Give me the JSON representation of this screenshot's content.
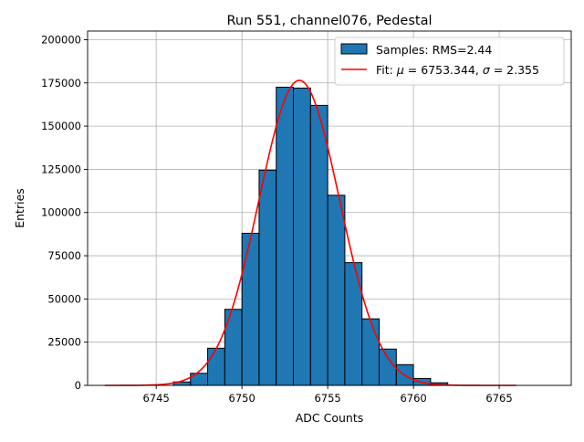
{
  "chart_data": {
    "type": "bar",
    "title": "Run 551, channel076, Pedestal",
    "xlabel": "ADC Counts",
    "ylabel": "Entries",
    "xlim": [
      6741.0,
      6769.2
    ],
    "ylim": [
      0,
      205000
    ],
    "xticks": [
      6745,
      6750,
      6755,
      6760,
      6765
    ],
    "xtick_labels": [
      "6745",
      "6750",
      "6755",
      "6760",
      "6765"
    ],
    "yticks": [
      0,
      25000,
      50000,
      75000,
      100000,
      125000,
      150000,
      175000,
      200000
    ],
    "ytick_labels": [
      "0",
      "25000",
      "50000",
      "75000",
      "100000",
      "125000",
      "150000",
      "175000",
      "200000"
    ],
    "grid": true,
    "legend_position": "top-right",
    "histogram": {
      "name": "Samples: RMS=2.44",
      "color": "#1f77b4",
      "edgecolor": "#000000",
      "bins": [
        {
          "x0": 6746.0,
          "x1": 6747.0,
          "count": 2000
        },
        {
          "x0": 6747.0,
          "x1": 6748.0,
          "count": 7000
        },
        {
          "x0": 6748.0,
          "x1": 6749.0,
          "count": 21500
        },
        {
          "x0": 6749.0,
          "x1": 6750.0,
          "count": 44000
        },
        {
          "x0": 6750.0,
          "x1": 6751.0,
          "count": 88000
        },
        {
          "x0": 6751.0,
          "x1": 6752.0,
          "count": 124500
        },
        {
          "x0": 6752.0,
          "x1": 6753.0,
          "count": 172500
        },
        {
          "x0": 6753.0,
          "x1": 6754.0,
          "count": 172000
        },
        {
          "x0": 6754.0,
          "x1": 6755.0,
          "count": 162000
        },
        {
          "x0": 6755.0,
          "x1": 6756.0,
          "count": 110000
        },
        {
          "x0": 6756.0,
          "x1": 6757.0,
          "count": 71000
        },
        {
          "x0": 6757.0,
          "x1": 6758.0,
          "count": 38500
        },
        {
          "x0": 6758.0,
          "x1": 6759.0,
          "count": 21000
        },
        {
          "x0": 6759.0,
          "x1": 6760.0,
          "count": 12000
        },
        {
          "x0": 6760.0,
          "x1": 6761.0,
          "count": 4000
        },
        {
          "x0": 6761.0,
          "x1": 6762.0,
          "count": 1500
        }
      ]
    },
    "fit": {
      "name_prefix": "Fit: ",
      "mu_symbol": "μ",
      "mu_text": " = 6753.344, ",
      "sigma_symbol": "σ",
      "sigma_text": " = 2.355",
      "color": "#ff0000",
      "mu": 6753.344,
      "sigma": 2.355,
      "amplitude": 176500,
      "x_range": [
        6742.0,
        6766.0
      ]
    }
  }
}
